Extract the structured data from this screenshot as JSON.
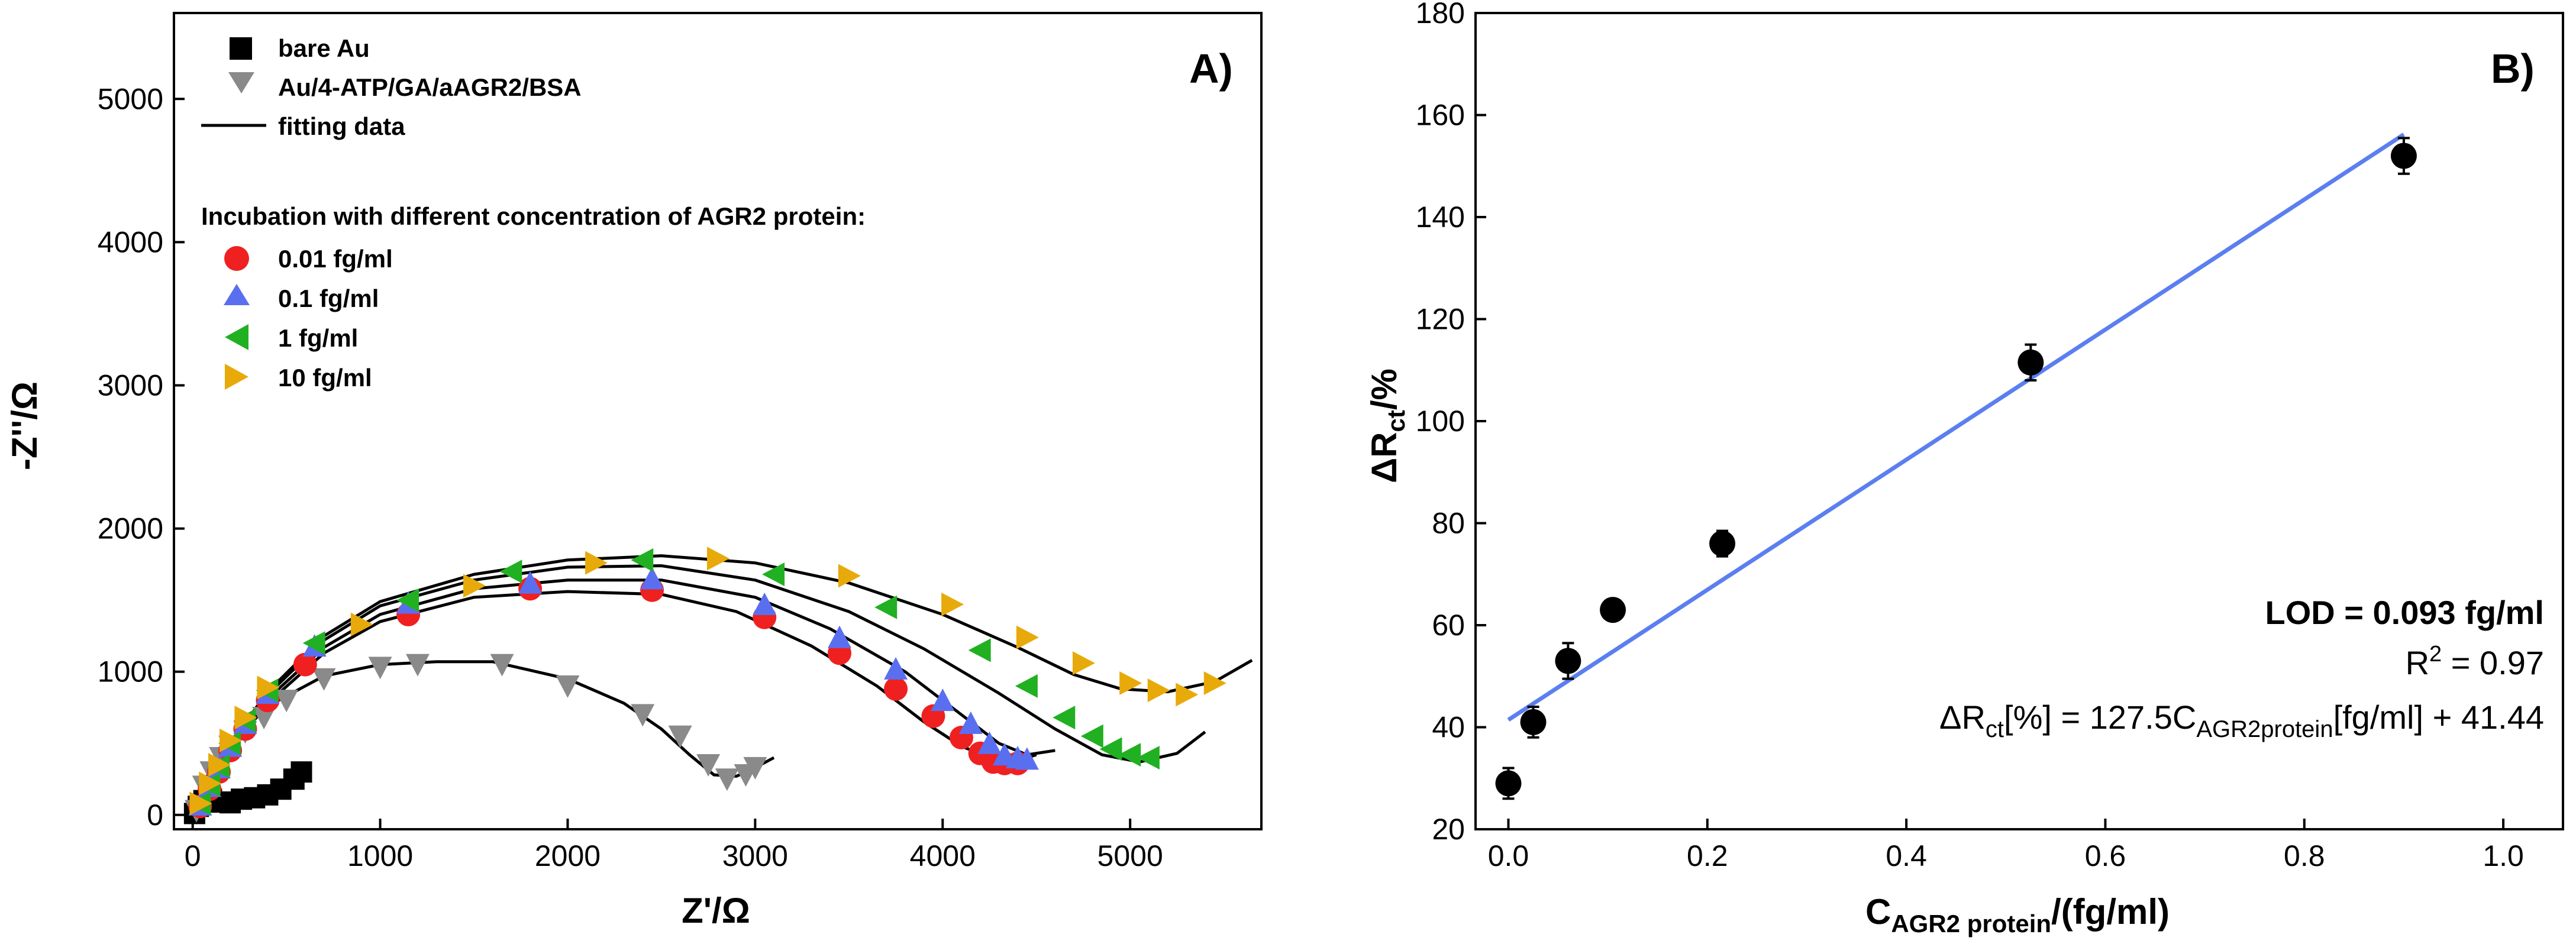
{
  "chart_data": [
    {
      "type": "scatter",
      "panel_label": "A)",
      "xlabel": "Z'/Ω",
      "ylabel": "-Z''/Ω",
      "xlim": [
        -100,
        5700
      ],
      "ylim": [
        -100,
        5600
      ],
      "xticks": [
        0,
        1000,
        2000,
        3000,
        4000,
        5000
      ],
      "yticks": [
        0,
        1000,
        2000,
        3000,
        4000,
        5000
      ],
      "legend_heading": "Incubation with different concentration of AGR2 protein:",
      "series": [
        {
          "name": "bare Au",
          "marker": "square",
          "color": "#000000",
          "x": [
            10,
            30,
            60,
            100,
            150,
            200,
            260,
            330,
            400,
            470,
            540,
            580
          ],
          "y": [
            10,
            60,
            100,
            110,
            90,
            85,
            110,
            120,
            140,
            180,
            250,
            300
          ]
        },
        {
          "name": "Au/4-ATP/GA/aAGR2/BSA",
          "marker": "triangle-down",
          "color": "#8a8a8a",
          "x": [
            20,
            60,
            100,
            150,
            200,
            280,
            380,
            500,
            700,
            1000,
            1200,
            1650,
            2000,
            2400,
            2600,
            2750,
            2850,
            2950,
            3000
          ],
          "y": [
            30,
            200,
            300,
            400,
            480,
            580,
            680,
            800,
            950,
            1030,
            1050,
            1050,
            900,
            700,
            550,
            350,
            250,
            280,
            330
          ]
        },
        {
          "name": "0.01 fg/ml",
          "marker": "circle",
          "color": "#ef2020",
          "x": [
            40,
            90,
            140,
            200,
            280,
            400,
            600,
            1150,
            1800,
            2450,
            3050,
            3450,
            3750,
            3950,
            4100,
            4200,
            4270,
            4330,
            4400
          ],
          "y": [
            60,
            180,
            300,
            450,
            600,
            800,
            1050,
            1400,
            1580,
            1570,
            1380,
            1130,
            880,
            690,
            540,
            430,
            370,
            360,
            360
          ]
        },
        {
          "name": "0.1 fg/ml",
          "marker": "triangle-up",
          "color": "#5a6ff0",
          "x": [
            40,
            90,
            140,
            200,
            280,
            400,
            650,
            1150,
            1800,
            2450,
            3050,
            3450,
            3750,
            4000,
            4150,
            4250,
            4330,
            4400,
            4450
          ],
          "y": [
            70,
            200,
            330,
            480,
            640,
            850,
            1180,
            1480,
            1620,
            1650,
            1470,
            1240,
            1020,
            800,
            640,
            500,
            420,
            400,
            390
          ]
        },
        {
          "name": "1 fg/ml",
          "marker": "triangle-left",
          "color": "#21b021",
          "x": [
            40,
            90,
            140,
            200,
            280,
            400,
            650,
            1150,
            1700,
            2400,
            3100,
            3700,
            4200,
            4450,
            4650,
            4800,
            4900,
            5000,
            5100
          ],
          "y": [
            80,
            210,
            340,
            500,
            660,
            870,
            1200,
            1500,
            1700,
            1780,
            1680,
            1450,
            1150,
            900,
            680,
            550,
            460,
            420,
            400
          ]
        },
        {
          "name": "10 fg/ml",
          "marker": "triangle-right",
          "color": "#e8aa0a",
          "x": [
            40,
            90,
            140,
            200,
            280,
            400,
            900,
            1500,
            2150,
            2800,
            3500,
            4050,
            4450,
            4750,
            5000,
            5150,
            5300,
            5450
          ],
          "y": [
            80,
            220,
            350,
            520,
            680,
            890,
            1330,
            1600,
            1760,
            1790,
            1670,
            1470,
            1240,
            1060,
            920,
            870,
            840,
            920
          ]
        }
      ],
      "fits": [
        {
          "x": [
            0,
            50,
            100,
            150,
            200,
            260,
            330,
            400,
            470,
            540,
            600
          ],
          "y": [
            0,
            60,
            100,
            100,
            80,
            90,
            115,
            130,
            170,
            240,
            300
          ]
        },
        {
          "x": [
            0,
            50,
            100,
            200,
            400,
            700,
            1000,
            1300,
            1600,
            2000,
            2300,
            2500,
            2650,
            2780,
            2900,
            3000,
            3100
          ],
          "y": [
            0,
            200,
            330,
            520,
            760,
            970,
            1050,
            1070,
            1070,
            950,
            780,
            600,
            420,
            280,
            270,
            330,
            400
          ]
        },
        {
          "x": [
            0,
            100,
            200,
            400,
            700,
            1000,
            1500,
            2000,
            2500,
            2900,
            3300,
            3650,
            3900,
            4100,
            4250,
            4400,
            4500
          ],
          "y": [
            0,
            220,
            450,
            780,
            1130,
            1350,
            1520,
            1560,
            1540,
            1420,
            1180,
            900,
            650,
            480,
            400,
            380,
            420
          ]
        },
        {
          "x": [
            0,
            100,
            200,
            400,
            700,
            1000,
            1500,
            2000,
            2500,
            3000,
            3400,
            3800,
            4100,
            4300,
            4450,
            4600
          ],
          "y": [
            0,
            230,
            470,
            810,
            1170,
            1400,
            1580,
            1640,
            1640,
            1520,
            1300,
            1000,
            700,
            500,
            420,
            450
          ]
        },
        {
          "x": [
            0,
            100,
            200,
            400,
            700,
            1000,
            1500,
            2000,
            2500,
            3000,
            3500,
            3900,
            4300,
            4600,
            4850,
            5050,
            5250,
            5400
          ],
          "y": [
            0,
            240,
            490,
            840,
            1220,
            1460,
            1640,
            1730,
            1740,
            1640,
            1420,
            1160,
            850,
            600,
            420,
            370,
            430,
            580
          ]
        },
        {
          "x": [
            0,
            100,
            200,
            400,
            700,
            1000,
            1500,
            2000,
            2500,
            3000,
            3500,
            4000,
            4400,
            4700,
            4950,
            5200,
            5450,
            5650
          ],
          "y": [
            0,
            250,
            500,
            860,
            1250,
            1490,
            1680,
            1780,
            1810,
            1760,
            1620,
            1400,
            1170,
            980,
            880,
            860,
            930,
            1080
          ]
        }
      ],
      "fit_legend": "fitting data"
    },
    {
      "type": "scatter",
      "panel_label": "B)",
      "xlabel": "C",
      "xlabel_sub": "AGR2 protein",
      "xlabel_suffix": "/(fg/ml)",
      "ylabel_prefix": "ΔR",
      "ylabel_sub": "ct",
      "ylabel_suffix": "/%",
      "xlim": [
        -0.033,
        1.06
      ],
      "ylim": [
        20,
        180
      ],
      "xticks": [
        0.0,
        0.2,
        0.4,
        0.6,
        0.8,
        1.0
      ],
      "yticks": [
        20,
        40,
        60,
        80,
        100,
        120,
        140,
        160,
        180
      ],
      "points": {
        "x": [
          0.0,
          0.025,
          0.06,
          0.105,
          0.215,
          0.525,
          0.9
        ],
        "y": [
          29,
          41,
          53,
          63,
          76,
          111.5,
          152
        ],
        "err": [
          3,
          3,
          3.5,
          2,
          2.5,
          3.5,
          3.5
        ]
      },
      "fit": {
        "slope": 127.5,
        "intercept": 41.44,
        "x_range": [
          0.0,
          0.9
        ],
        "color": "#5b7ff0"
      },
      "annotations": {
        "lod": "LOD = 0.093 fg/ml",
        "r2_prefix": "R",
        "r2_sup": "2",
        "r2_suffix": " = 0.97",
        "eq_a": "ΔR",
        "eq_b": "ct",
        "eq_c": "[%] = 127.5C",
        "eq_d": "AGR2protein",
        "eq_e": "[fg/ml] + 41.44"
      }
    }
  ]
}
